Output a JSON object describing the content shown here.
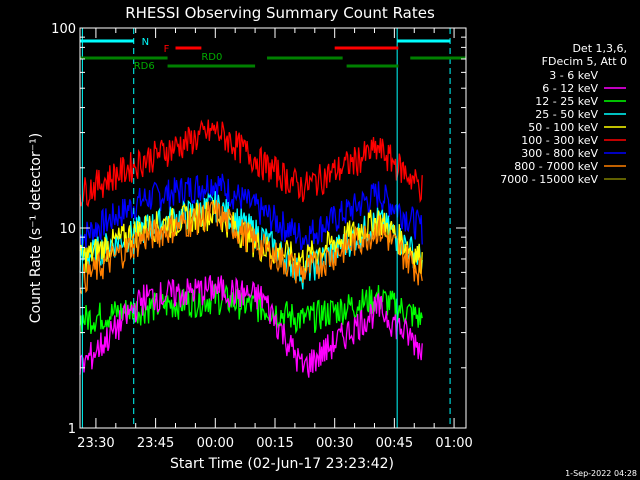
{
  "chart_data": {
    "type": "line",
    "title": "RHESSI Observing Summary Count Rates",
    "xlabel": "Start Time (02-Jun-17 23:23:42)",
    "ylabel": "Count Rate (s⁻¹ detector⁻¹)",
    "yscale": "log",
    "ylim": [
      1,
      100
    ],
    "xlim_minutes_after_2330": [
      -4,
      93
    ],
    "x_ticks": [
      {
        "label": "23:30",
        "min": 0
      },
      {
        "label": "23:45",
        "min": 15
      },
      {
        "label": "00:00",
        "min": 30
      },
      {
        "label": "00:15",
        "min": 45
      },
      {
        "label": "00:30",
        "min": 60
      },
      {
        "label": "00:45",
        "min": 75
      },
      {
        "label": "01:00",
        "min": 90
      }
    ],
    "y_ticks": [
      {
        "label": "1",
        "value": 1
      },
      {
        "label": "10",
        "value": 10
      },
      {
        "label": "100",
        "value": 100
      }
    ],
    "legend_header": [
      "Det 1,3,6,",
      "FDecim 5, Att 0"
    ],
    "legend_position": "right",
    "series": [
      {
        "name": "3 - 6 keV",
        "color": "#000000",
        "values": []
      },
      {
        "name": "6 - 12 keV",
        "color": "#ff00ff",
        "values": [
          2.0,
          4.5,
          5.0,
          4.5,
          2.0,
          4.0,
          2.5
        ]
      },
      {
        "name": "12 - 25 keV",
        "color": "#00ff00",
        "values": [
          3.5,
          4.0,
          4.5,
          4.0,
          3.5,
          4.5,
          3.5
        ]
      },
      {
        "name": "25 - 50 keV",
        "color": "#00ffff",
        "values": [
          7,
          10,
          13,
          9,
          6,
          11,
          7
        ]
      },
      {
        "name": "50 - 100 keV",
        "color": "#ffff00",
        "values": [
          7,
          10,
          12,
          8,
          7,
          11,
          7
        ]
      },
      {
        "name": "100 - 300 keV",
        "color": "#ff0000",
        "values": [
          15,
          22,
          31,
          21,
          16,
          25,
          16
        ]
      },
      {
        "name": "300 - 800 keV",
        "color": "#0000ff",
        "values": [
          9,
          14,
          17,
          12,
          9,
          15,
          10
        ]
      },
      {
        "name": "800 - 7000 keV",
        "color": "#ff8000",
        "values": [
          5.5,
          9,
          12,
          8,
          6,
          10,
          6
        ]
      },
      {
        "name": "7000 - 15000 keV",
        "color": "#808000",
        "values": []
      }
    ],
    "series_x_minutes": [
      -4,
      12,
      30,
      42,
      52,
      71,
      82
    ],
    "flag_labels": {
      "n": "N",
      "f": "F",
      "rd0": "RD0",
      "rd6": "RD6"
    },
    "footer_date": "1-Sep-2022 04:28"
  }
}
